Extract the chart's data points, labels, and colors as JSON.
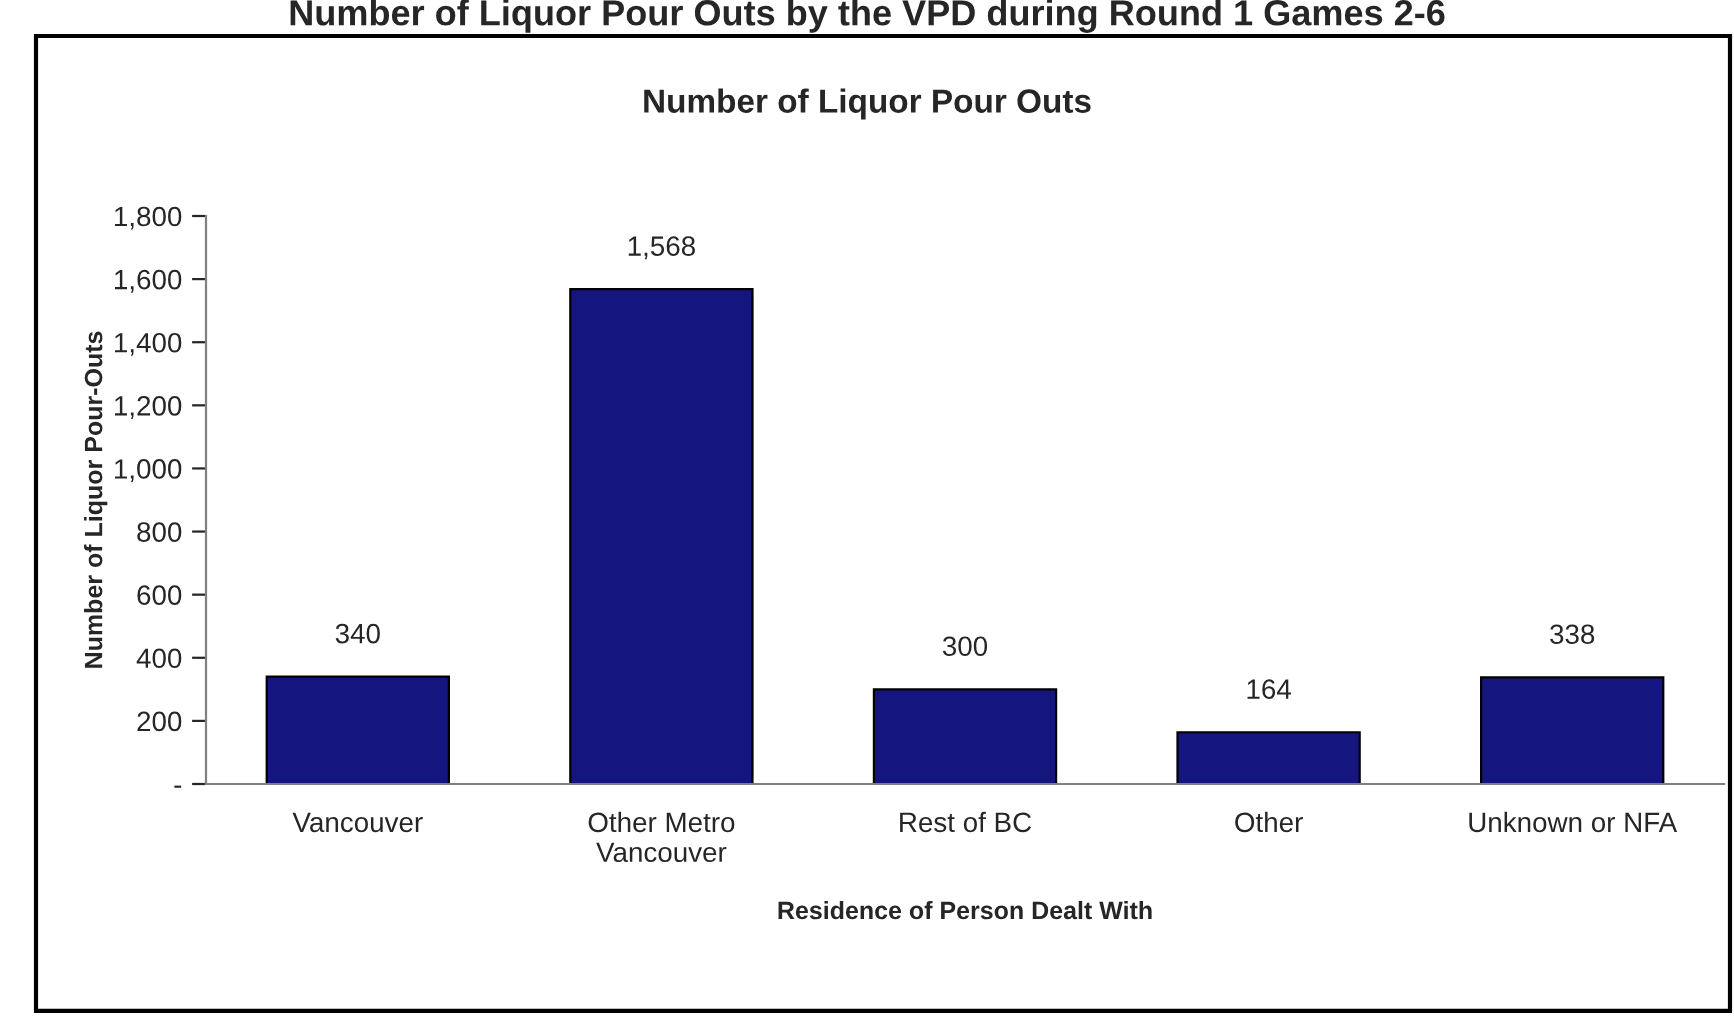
{
  "chart_data": {
    "type": "bar",
    "title": "Number of Liquor Pour Outs by the VPD during Round 1 Games 2-6",
    "subtitle": "Number of Liquor Pour Outs",
    "xlabel": "Residence of Person Dealt With",
    "ylabel": "Number of Liquor Pour-Outs",
    "categories": [
      "Vancouver",
      "Other Metro\nVancouver",
      "Rest of BC",
      "Other",
      "Unknown or NFA"
    ],
    "values": [
      340,
      1568,
      300,
      164,
      338
    ],
    "color": "#151580",
    "value_labels": [
      "340",
      "1,568",
      "300",
      "164",
      "338"
    ],
    "ylim": [
      0,
      1800
    ],
    "yticks": [
      {
        "value": 0,
        "label": "-"
      },
      {
        "value": 200,
        "label": "200"
      },
      {
        "value": 400,
        "label": "400"
      },
      {
        "value": 600,
        "label": "600"
      },
      {
        "value": 800,
        "label": "800"
      },
      {
        "value": 1000,
        "label": "1,000"
      },
      {
        "value": 1200,
        "label": "1,200"
      },
      {
        "value": 1400,
        "label": "1,400"
      },
      {
        "value": 1600,
        "label": "1,600"
      },
      {
        "value": 1800,
        "label": "1,800"
      }
    ],
    "grid": false,
    "legend": false
  }
}
